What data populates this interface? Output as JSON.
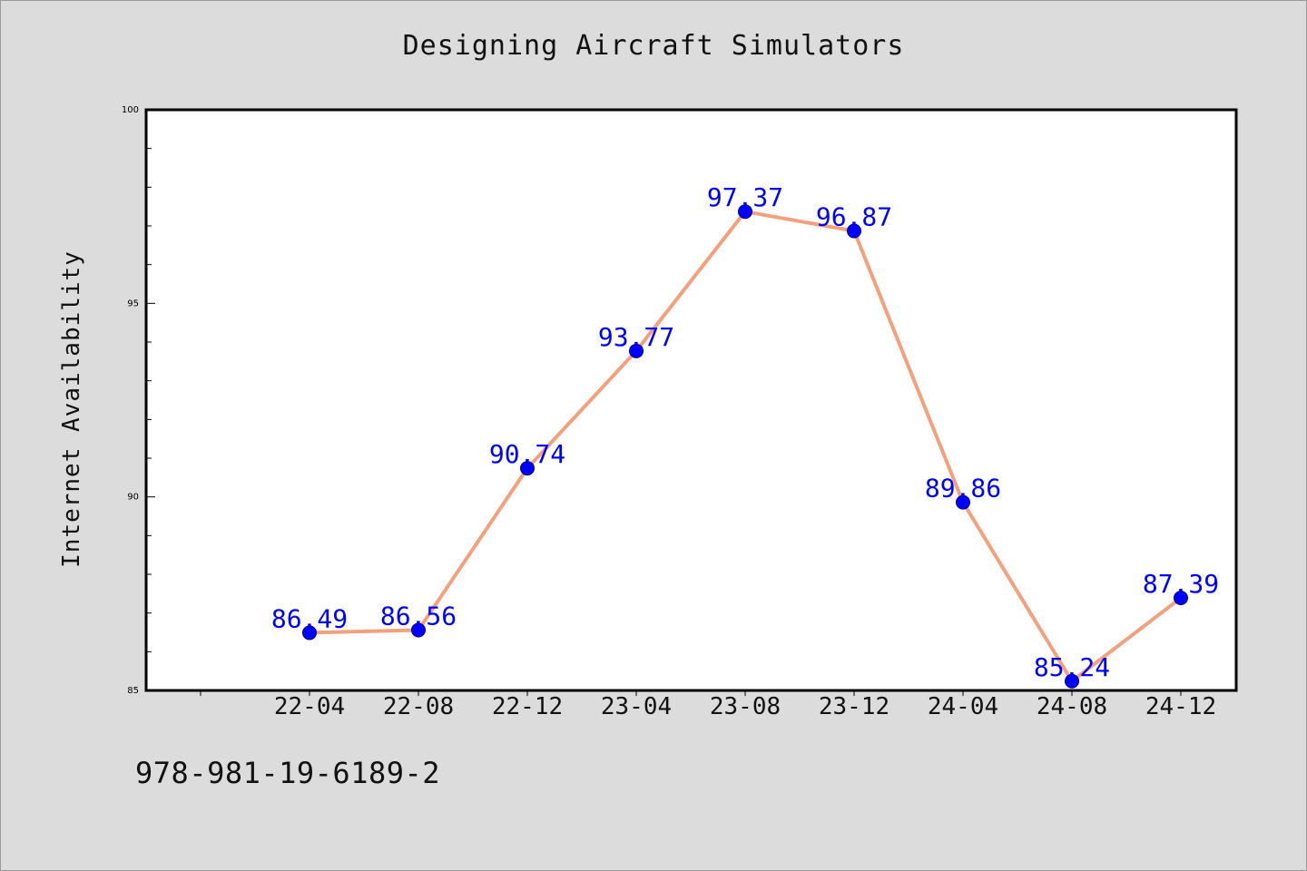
{
  "title": "Designing Aircraft Simulators",
  "footer": "978-981-19-6189-2",
  "colors": {
    "line": "#f4a07c",
    "marker": "#0000ff",
    "label": "#0000ff",
    "plot_bg": "#ffffff",
    "figure_bg": "#dcdcdc"
  },
  "chart_data": {
    "type": "line",
    "title": "Designing Aircraft Simulators",
    "xlabel": "",
    "ylabel": "Internet Availability",
    "categories": [
      "22-04",
      "22-08",
      "22-12",
      "23-04",
      "23-08",
      "23-12",
      "24-04",
      "24-08",
      "24-12"
    ],
    "series": [
      {
        "values": [
          86.49,
          86.56,
          90.74,
          93.77,
          97.37,
          96.87,
          89.86,
          85.24,
          87.39
        ],
        "labels": [
          "86.49",
          "86.56",
          "90.74",
          "93.77",
          "97.37",
          "96.87",
          "89.86",
          "85.24",
          "87.39"
        ]
      }
    ],
    "ylim": [
      85,
      100
    ],
    "yticks": [
      85,
      90,
      95,
      100
    ],
    "grid": false,
    "legend": "none"
  }
}
